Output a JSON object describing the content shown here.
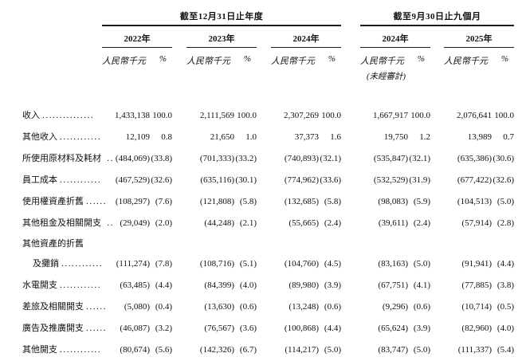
{
  "colors": {
    "background": "#ffffff",
    "text": "#111111",
    "rule": "#1c1c1c"
  },
  "table": {
    "period_groups": [
      {
        "title": "截至12月31日止年度",
        "years": [
          "2022年",
          "2023年",
          "2024年"
        ]
      },
      {
        "title": "截至9月30日止九個月",
        "years": [
          "2024年",
          "2025年"
        ]
      }
    ],
    "column_headers": {
      "unit": "人民幣千元",
      "percent": "%",
      "unaudited": "(未經審計)"
    },
    "rows": [
      {
        "label": "收入",
        "dots": "...............",
        "indent": false,
        "values": [
          [
            "1,433,138",
            "100.0"
          ],
          [
            "2,111,569",
            "100.0"
          ],
          [
            "2,307,269",
            "100.0"
          ],
          [
            "1,667,917",
            "100.0"
          ],
          [
            "2,076,641",
            "100.0"
          ]
        ]
      },
      {
        "label": "其他收入",
        "dots": "............",
        "indent": false,
        "values": [
          [
            "12,109",
            "0.8"
          ],
          [
            "21,650",
            "1.0"
          ],
          [
            "37,373",
            "1.6"
          ],
          [
            "19,750",
            "1.2"
          ],
          [
            "13,989",
            "0.7"
          ]
        ]
      },
      {
        "label": "所使用原材料及耗材",
        "dots": " ..",
        "indent": false,
        "values": [
          [
            "(484,069)",
            "(33.8)"
          ],
          [
            "(701,333)",
            "(33.2)"
          ],
          [
            "(740,893)",
            "(32.1)"
          ],
          [
            "(535,847)",
            "(32.1)"
          ],
          [
            "(635,386)",
            "(30.6)"
          ]
        ]
      },
      {
        "label": "員工成本",
        "dots": "............",
        "indent": false,
        "values": [
          [
            "(467,529)",
            "(32.6)"
          ],
          [
            "(635,116)",
            "(30.1)"
          ],
          [
            "(774,962)",
            "(33.6)"
          ],
          [
            "(532,529)",
            "(31.9)"
          ],
          [
            "(677,422)",
            "(32.6)"
          ]
        ]
      },
      {
        "label": "使用權資產折舊",
        "dots": "......",
        "indent": false,
        "values": [
          [
            "(108,297)",
            "(7.6)"
          ],
          [
            "(121,808)",
            "(5.8)"
          ],
          [
            "(132,685)",
            "(5.8)"
          ],
          [
            "(98,083)",
            "(5.9)"
          ],
          [
            "(104,513)",
            "(5.0)"
          ]
        ]
      },
      {
        "label": "其他租金及相關開支",
        "dots": " ..",
        "indent": false,
        "values": [
          [
            "(29,049)",
            "(2.0)"
          ],
          [
            "(44,248)",
            "(2.1)"
          ],
          [
            "(55,665)",
            "(2.4)"
          ],
          [
            "(39,611)",
            "(2.4)"
          ],
          [
            "(57,914)",
            "(2.8)"
          ]
        ]
      },
      {
        "label": "其他資產的折舊",
        "dots": "",
        "indent": false,
        "values": []
      },
      {
        "label": "及攤銷",
        "dots": "............",
        "indent": true,
        "values": [
          [
            "(111,274)",
            "(7.8)"
          ],
          [
            "(108,716)",
            "(5.1)"
          ],
          [
            "(104,760)",
            "(4.5)"
          ],
          [
            "(83,163)",
            "(5.0)"
          ],
          [
            "(91,941)",
            "(4.4)"
          ]
        ]
      },
      {
        "label": "水電開支",
        "dots": "............",
        "indent": false,
        "values": [
          [
            "(63,485)",
            "(4.4)"
          ],
          [
            "(84,399)",
            "(4.0)"
          ],
          [
            "(89,980)",
            "(3.9)"
          ],
          [
            "(67,751)",
            "(4.1)"
          ],
          [
            "(77,885)",
            "(3.8)"
          ]
        ]
      },
      {
        "label": "差旅及相關開支",
        "dots": "......",
        "indent": false,
        "values": [
          [
            "(5,080)",
            "(0.4)"
          ],
          [
            "(13,630)",
            "(0.6)"
          ],
          [
            "(13,248)",
            "(0.6)"
          ],
          [
            "(9,296)",
            "(0.6)"
          ],
          [
            "(10,714)",
            "(0.5)"
          ]
        ]
      },
      {
        "label": "廣告及推廣開支",
        "dots": "......",
        "indent": false,
        "values": [
          [
            "(46,087)",
            "(3.2)"
          ],
          [
            "(76,567)",
            "(3.6)"
          ],
          [
            "(100,868)",
            "(4.4)"
          ],
          [
            "(65,624)",
            "(3.9)"
          ],
          [
            "(82,960)",
            "(4.0)"
          ]
        ]
      },
      {
        "label": "其他開支",
        "dots": "............",
        "indent": false,
        "values": [
          [
            "(80,674)",
            "(5.6)"
          ],
          [
            "(142,326)",
            "(6.7)"
          ],
          [
            "(114,217)",
            "(5.0)"
          ],
          [
            "(83,747)",
            "(5.0)"
          ],
          [
            "(111,337)",
            "(5.4)"
          ]
        ]
      }
    ]
  }
}
